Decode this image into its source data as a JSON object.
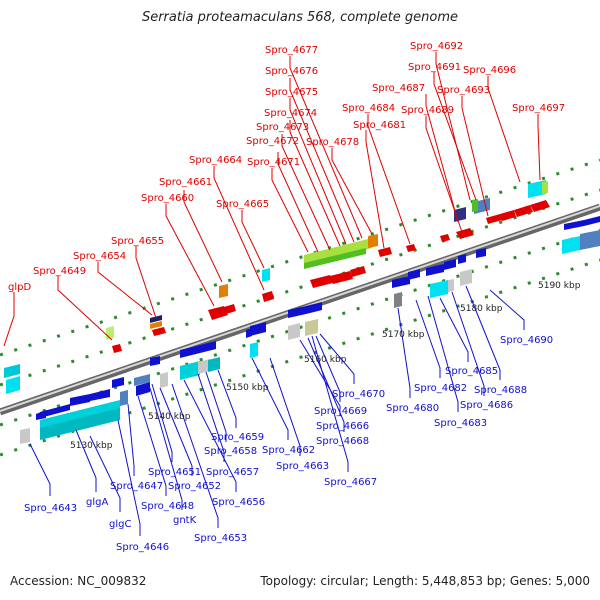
{
  "title": "Serratia proteamaculans 568, complete genome",
  "accession": "Accession: NC_009832",
  "summary": "Topology: circular; Length: 5,448,853 bp; Genes: 5,000",
  "colors": {
    "forward": "#e00000",
    "reverse": "#1010d0",
    "backbone": "#888888"
  },
  "kbp_labels": [
    "5130 kbp",
    "5140 kbp",
    "5150 kbp",
    "5160 kbp",
    "5170 kbp",
    "5180 kbp",
    "5190 kbp"
  ],
  "top_labels": [
    "glpD",
    "Spro_4649",
    "Spro_4654",
    "Spro_4655",
    "Spro_4660",
    "Spro_4661",
    "Spro_4664",
    "Spro_4665",
    "Spro_4671",
    "Spro_4672",
    "Spro_4673",
    "Spro_4674",
    "Spro_4675",
    "Spro_4676",
    "Spro_4677",
    "Spro_4678",
    "Spro_4681",
    "Spro_4684",
    "Spro_4687",
    "Spro_4689",
    "Spro_4691",
    "Spro_4692",
    "Spro_4693",
    "Spro_4696",
    "Spro_4697"
  ],
  "bottom_labels": [
    "Spro_4643",
    "glgA",
    "glgC",
    "Spro_4646",
    "Spro_4647",
    "Spro_4648",
    "gntK",
    "Spro_4651",
    "Spro_4652",
    "Spro_4653",
    "Spro_4656",
    "Spro_4657",
    "Spro_4658",
    "Spro_4659",
    "Spro_4662",
    "Spro_4663",
    "Spro_4666",
    "Spro_4667",
    "Spro_4668",
    "Spro_4669",
    "Spro_4670",
    "Spro_4680",
    "Spro_4682",
    "Spro_4683",
    "Spro_4685",
    "Spro_4686",
    "Spro_4688",
    "Spro_4690"
  ]
}
